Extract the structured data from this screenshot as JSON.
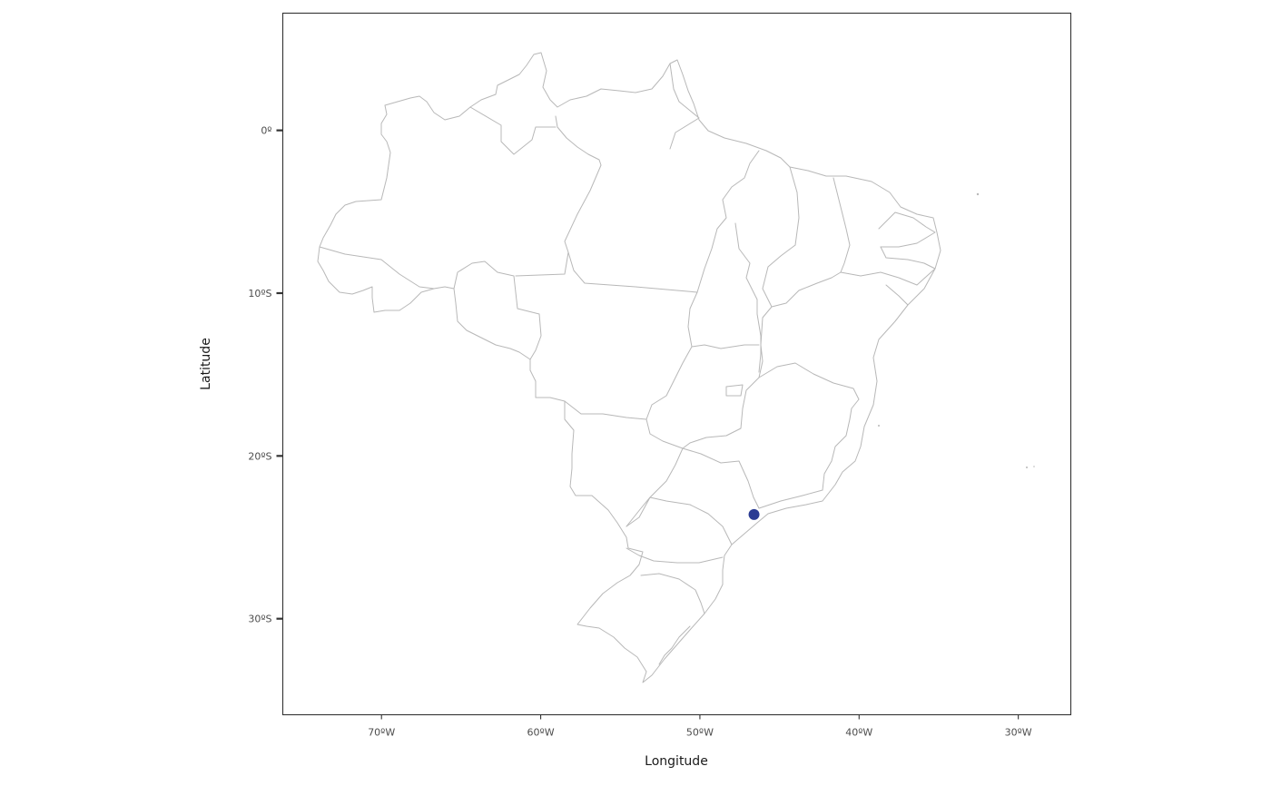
{
  "map": {
    "x_axis_label": "Longitude",
    "y_axis_label": "Latitude",
    "x_ticks": [
      "70ºW",
      "60ºW",
      "50ºW",
      "40ºW",
      "30ºW"
    ],
    "y_ticks": [
      "0º",
      "10ºS",
      "20ºS",
      "30ºS"
    ],
    "region": "Brazil (state boundaries)",
    "basemap_border_color": "#b8b8b8",
    "frame_color": "#333333"
  },
  "chart_data": {
    "type": "scatter",
    "xlabel": "Longitude",
    "ylabel": "Latitude",
    "xlim": [
      -76.2,
      -26.7
    ],
    "ylim": [
      -35.9,
      7.2
    ],
    "x_ticks": [
      -70,
      -60,
      -50,
      -40,
      -30
    ],
    "y_ticks": [
      0,
      -10,
      -20,
      -30
    ],
    "grid": false,
    "legend": "none",
    "series": [
      {
        "points": [
          {
            "lon": -46.6,
            "lat": -23.6
          }
        ],
        "color": "#2b3c93"
      }
    ]
  }
}
